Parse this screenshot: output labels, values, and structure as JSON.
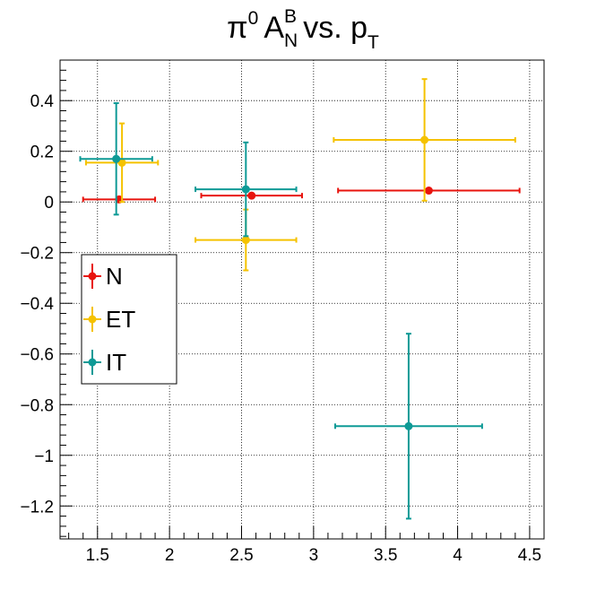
{
  "chart_data": {
    "type": "scatter",
    "title": {
      "pi": "π",
      "pi_sup": "0",
      "a": "A",
      "a_sup": "B",
      "a_sub": "N",
      "vs": "vs. p",
      "p_sub": "T"
    },
    "xlabel": "",
    "ylabel": "",
    "xlim": [
      1.24,
      4.6
    ],
    "ylim": [
      -1.33,
      0.56
    ],
    "x_ticks": [
      1.5,
      2,
      2.5,
      3,
      3.5,
      4,
      4.5
    ],
    "x_tick_labels": [
      "1.5",
      "2",
      "2.5",
      "3",
      "3.5",
      "4",
      "4.5"
    ],
    "y_ticks": [
      0.4,
      0.2,
      0,
      -0.2,
      -0.4,
      -0.6,
      -0.8,
      -1,
      -1.2
    ],
    "y_tick_labels": [
      "0.4",
      "0.2",
      "0",
      "−0.2",
      "−0.4",
      "−0.6",
      "−0.8",
      "−1",
      "−1.2"
    ],
    "grid": true,
    "legend_position": "left-middle",
    "series": [
      {
        "name": "N",
        "color": "#e8140e",
        "points": [
          {
            "x": 1.65,
            "y": 0.01,
            "xerr": 0.25,
            "yerr": 0.0
          },
          {
            "x": 2.57,
            "y": 0.025,
            "xerr": 0.35,
            "yerr": 0.0
          },
          {
            "x": 3.8,
            "y": 0.045,
            "xerr": 0.63,
            "yerr": 0.0
          }
        ]
      },
      {
        "name": "ET",
        "color": "#f5c200",
        "points": [
          {
            "x": 1.67,
            "y": 0.155,
            "xerr": 0.25,
            "yerr": 0.155
          },
          {
            "x": 2.53,
            "y": -0.15,
            "xerr": 0.35,
            "yerr": 0.12
          },
          {
            "x": 3.77,
            "y": 0.245,
            "xerr": 0.63,
            "yerr": 0.24
          }
        ]
      },
      {
        "name": "IT",
        "color": "#0e9a96",
        "points": [
          {
            "x": 1.63,
            "y": 0.17,
            "xerr": 0.25,
            "yerr": 0.22
          },
          {
            "x": 2.53,
            "y": 0.05,
            "xerr": 0.35,
            "yerr": 0.185
          },
          {
            "x": 3.66,
            "y": -0.885,
            "xerr": 0.51,
            "yerr": 0.365
          }
        ]
      }
    ]
  }
}
